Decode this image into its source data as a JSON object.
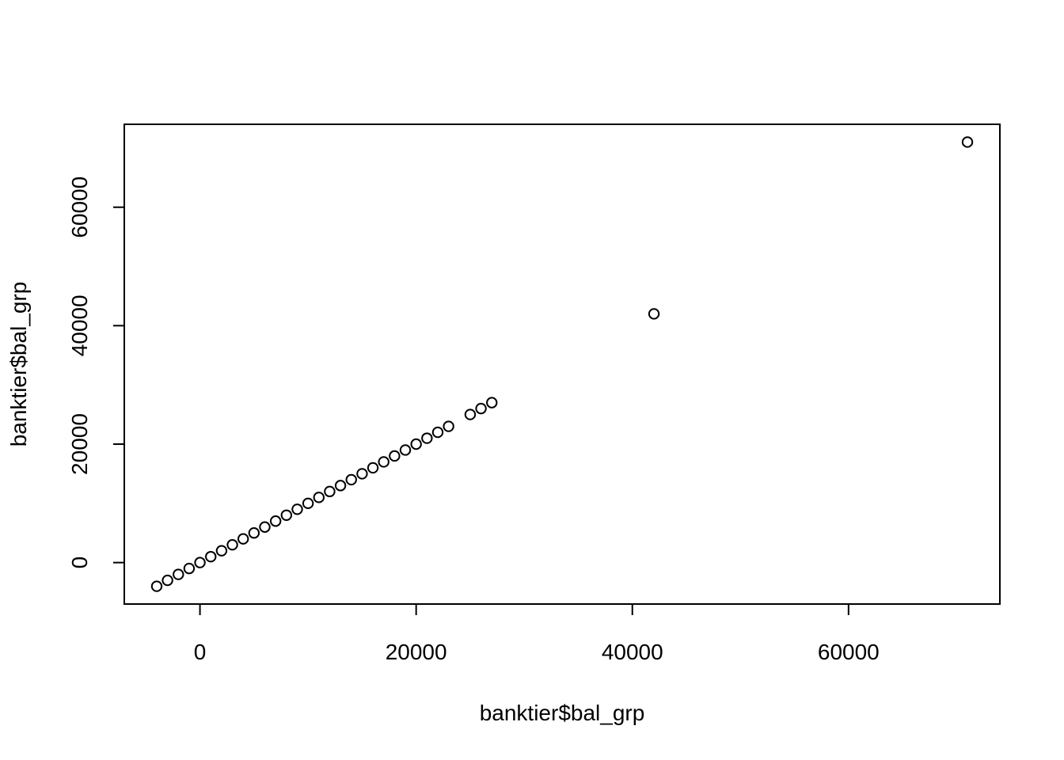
{
  "chart_data": {
    "type": "scatter",
    "title": "",
    "xlabel": "banktier$bal_grp",
    "ylabel": "banktier$bal_grp",
    "xlim": [
      -7000,
      74000
    ],
    "ylim": [
      -7000,
      74000
    ],
    "x_ticks": [
      0,
      20000,
      40000,
      60000
    ],
    "y_ticks": [
      0,
      20000,
      40000,
      60000
    ],
    "x_tick_labels": [
      "0",
      "20000",
      "40000",
      "60000"
    ],
    "y_tick_labels": [
      "0",
      "20000",
      "40000",
      "60000"
    ],
    "grid": false,
    "legend": "none",
    "marker": "open-circle",
    "series": [
      {
        "x": [
          -4000,
          -3000,
          -2000,
          -1000,
          0,
          1000,
          2000,
          3000,
          4000,
          5000,
          6000,
          7000,
          8000,
          9000,
          10000,
          11000,
          12000,
          13000,
          14000,
          15000,
          16000,
          17000,
          18000,
          19000,
          20000,
          21000,
          22000,
          23000,
          25000,
          26000,
          27000,
          42000,
          71000
        ],
        "y": [
          -4000,
          -3000,
          -2000,
          -1000,
          0,
          1000,
          2000,
          3000,
          4000,
          5000,
          6000,
          7000,
          8000,
          9000,
          10000,
          11000,
          12000,
          13000,
          14000,
          15000,
          16000,
          17000,
          18000,
          19000,
          20000,
          21000,
          22000,
          23000,
          25000,
          26000,
          27000,
          42000,
          71000
        ]
      }
    ]
  }
}
